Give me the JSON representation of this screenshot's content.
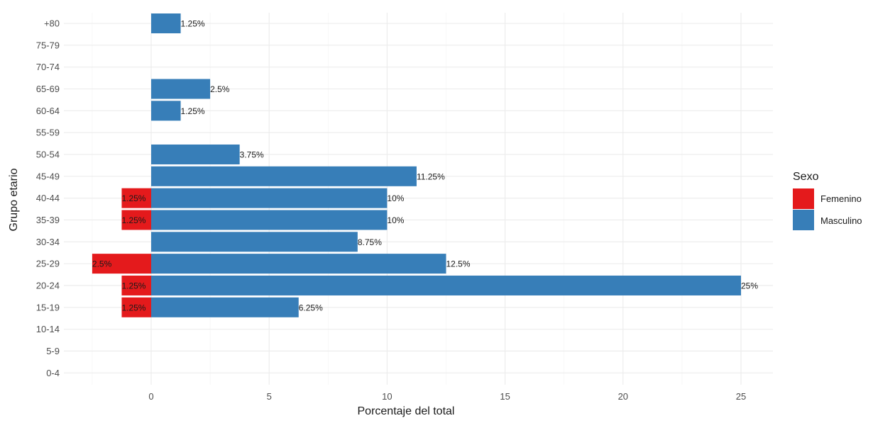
{
  "chart_data": {
    "type": "bar",
    "orientation": "horizontal",
    "categories": [
      "0-4",
      "5-9",
      "10-14",
      "15-19",
      "20-24",
      "25-29",
      "30-34",
      "35-39",
      "40-44",
      "45-49",
      "50-54",
      "55-59",
      "60-64",
      "65-69",
      "70-74",
      "75-79",
      "+80"
    ],
    "series": [
      {
        "name": "Femenino",
        "color": "#e41a1c",
        "values": [
          0,
          0,
          0,
          -1.25,
          -1.25,
          -2.5,
          0,
          -1.25,
          -1.25,
          0,
          0,
          0,
          0,
          0,
          0,
          0,
          0
        ],
        "labels": [
          "",
          "",
          "",
          "1.25%",
          "1.25%",
          "2.5%",
          "",
          "1.25%",
          "1.25%",
          "",
          "",
          "",
          "",
          "",
          "",
          "",
          ""
        ]
      },
      {
        "name": "Masculino",
        "color": "#377eb8",
        "values": [
          0,
          0,
          0,
          6.25,
          25,
          12.5,
          8.75,
          10,
          10,
          11.25,
          3.75,
          0,
          1.25,
          2.5,
          0,
          0,
          1.25
        ],
        "labels": [
          "",
          "",
          "",
          "6.25%",
          "25%",
          "12.5%",
          "8.75%",
          "10%",
          "10%",
          "11.25%",
          "3.75%",
          "",
          "1.25%",
          "2.5%",
          "",
          "",
          "1.25%"
        ]
      }
    ],
    "xlabel": "Porcentaje del total",
    "ylabel": "Grupo etario",
    "xlim": [
      -3.75,
      26.5
    ],
    "xticks": [
      0,
      5,
      10,
      15,
      20,
      25
    ],
    "xtick_labels": [
      "0",
      "5",
      "10",
      "15",
      "20",
      "25"
    ],
    "grid": true,
    "legend": {
      "title": "Sexo",
      "position": "right",
      "entries": [
        "Femenino",
        "Masculino"
      ]
    }
  }
}
